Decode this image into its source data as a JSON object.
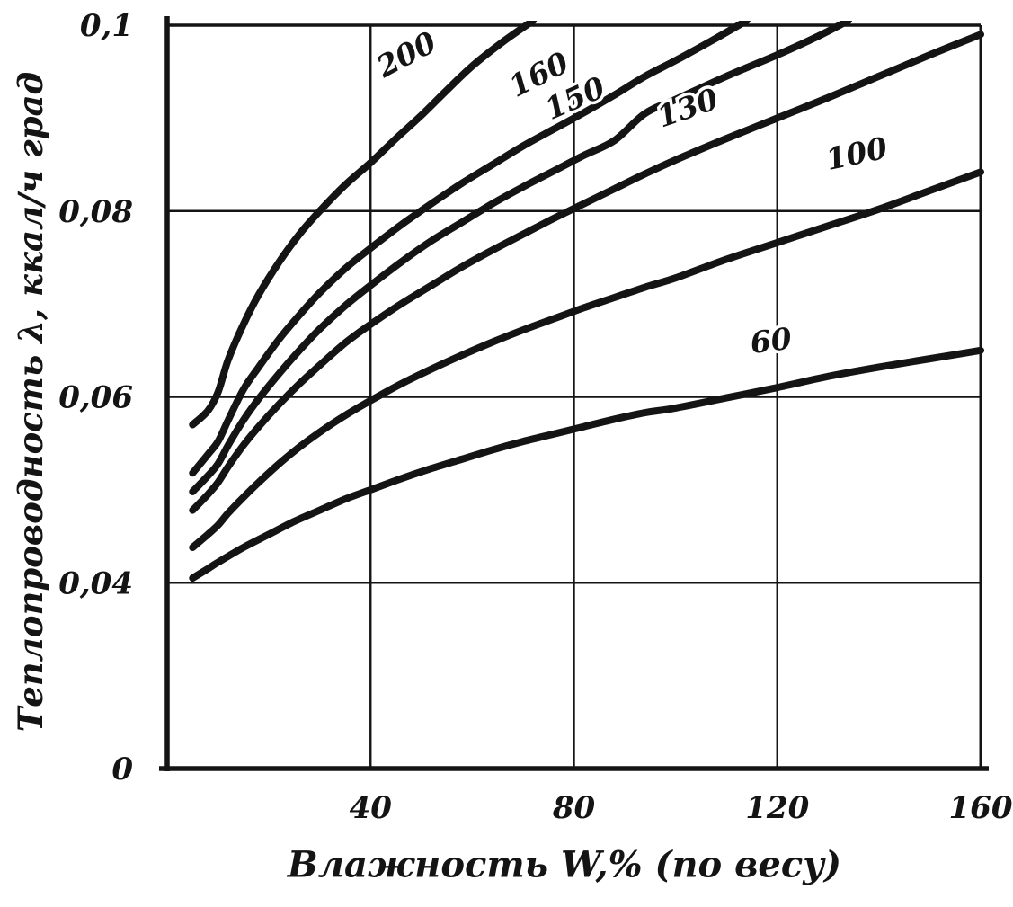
{
  "page": {
    "background": "#ffffff",
    "ink": "#141414"
  },
  "chart_data": {
    "type": "line",
    "title": "",
    "xlabel": "Влажность W,% (по весу)",
    "ylabel": "Теплопроводность λ, ккал/ч град",
    "xlim": [
      0,
      160
    ],
    "xticks": [
      40,
      80,
      120,
      160
    ],
    "xtick_labels": [
      "40",
      "80",
      "120",
      "160"
    ],
    "ytick_values": [
      0,
      0.04,
      0.06,
      0.08,
      0.1
    ],
    "ytick_labels": [
      "0",
      "0,04",
      "0,06",
      "0,08",
      "0,1"
    ],
    "ylim": [
      0,
      0.1
    ],
    "grid": true,
    "legend_position": "inline-curve-labels",
    "axis_note": "y-axis segment 0 to 0,04 is drawn compressed (one grid interval)",
    "series": [
      {
        "name": "200",
        "label": "200",
        "label_pos": {
          "w": 48,
          "dy": -68,
          "rot": -28
        },
        "points": [
          [
            5,
            0.057
          ],
          [
            8,
            0.0585
          ],
          [
            10,
            0.0605
          ],
          [
            12,
            0.064
          ],
          [
            15,
            0.0678
          ],
          [
            18,
            0.071
          ],
          [
            22,
            0.0745
          ],
          [
            26,
            0.0775
          ],
          [
            30,
            0.08
          ],
          [
            35,
            0.0828
          ],
          [
            40,
            0.0852
          ],
          [
            45,
            0.0878
          ],
          [
            50,
            0.0903
          ],
          [
            55,
            0.093
          ],
          [
            60,
            0.0956
          ],
          [
            66,
            0.0982
          ],
          [
            72,
            0.1005
          ]
        ]
      },
      {
        "name": "160",
        "label": "160",
        "label_pos": {
          "w": 74,
          "dy": -57,
          "rot": -27
        },
        "points": [
          [
            5,
            0.0518
          ],
          [
            8,
            0.0538
          ],
          [
            10,
            0.0552
          ],
          [
            12,
            0.0575
          ],
          [
            15,
            0.0608
          ],
          [
            18,
            0.0632
          ],
          [
            22,
            0.0662
          ],
          [
            26,
            0.0688
          ],
          [
            30,
            0.0712
          ],
          [
            35,
            0.0738
          ],
          [
            40,
            0.076
          ],
          [
            46,
            0.0785
          ],
          [
            52,
            0.0808
          ],
          [
            58,
            0.083
          ],
          [
            64,
            0.085
          ],
          [
            70,
            0.087
          ],
          [
            76,
            0.0888
          ],
          [
            82,
            0.0906
          ],
          [
            88,
            0.0925
          ],
          [
            94,
            0.0945
          ],
          [
            100,
            0.0962
          ],
          [
            107,
            0.0983
          ],
          [
            114,
            0.1005
          ]
        ]
      },
      {
        "name": "150",
        "label": "150",
        "label_pos": {
          "w": 81,
          "dy": -56,
          "rot": -24
        },
        "points": [
          [
            5,
            0.0498
          ],
          [
            8,
            0.0515
          ],
          [
            10,
            0.0528
          ],
          [
            12,
            0.0548
          ],
          [
            15,
            0.0575
          ],
          [
            18,
            0.0598
          ],
          [
            22,
            0.0625
          ],
          [
            26,
            0.065
          ],
          [
            30,
            0.0673
          ],
          [
            35,
            0.0698
          ],
          [
            40,
            0.072
          ],
          [
            46,
            0.0745
          ],
          [
            52,
            0.0768
          ],
          [
            58,
            0.0788
          ],
          [
            64,
            0.0808
          ],
          [
            70,
            0.0826
          ],
          [
            76,
            0.0843
          ],
          [
            82,
            0.086
          ],
          [
            88,
            0.0876
          ],
          [
            94,
            0.0905
          ],
          [
            100,
            0.092
          ],
          [
            110,
            0.0945
          ],
          [
            120,
            0.0968
          ],
          [
            128,
            0.0988
          ],
          [
            134,
            0.1005
          ]
        ]
      },
      {
        "name": "130",
        "label": "130",
        "label_pos": {
          "w": 103,
          "dy": -40,
          "rot": -19
        },
        "points": [
          [
            5,
            0.0478
          ],
          [
            8,
            0.0495
          ],
          [
            10,
            0.0508
          ],
          [
            12,
            0.0525
          ],
          [
            15,
            0.0548
          ],
          [
            18,
            0.0568
          ],
          [
            22,
            0.0592
          ],
          [
            26,
            0.0614
          ],
          [
            30,
            0.0634
          ],
          [
            35,
            0.0658
          ],
          [
            40,
            0.0678
          ],
          [
            46,
            0.07
          ],
          [
            52,
            0.072
          ],
          [
            58,
            0.074
          ],
          [
            64,
            0.0758
          ],
          [
            70,
            0.0775
          ],
          [
            76,
            0.0792
          ],
          [
            82,
            0.0808
          ],
          [
            88,
            0.0824
          ],
          [
            94,
            0.084
          ],
          [
            100,
            0.0855
          ],
          [
            110,
            0.0878
          ],
          [
            120,
            0.09
          ],
          [
            130,
            0.0922
          ],
          [
            140,
            0.0945
          ],
          [
            150,
            0.0968
          ],
          [
            160,
            0.099
          ]
        ]
      },
      {
        "name": "100",
        "label": "100",
        "label_pos": {
          "w": 136,
          "dy": -58,
          "rot": -12
        },
        "points": [
          [
            5,
            0.0438
          ],
          [
            8,
            0.0452
          ],
          [
            10,
            0.0462
          ],
          [
            12,
            0.0475
          ],
          [
            15,
            0.0492
          ],
          [
            18,
            0.0508
          ],
          [
            22,
            0.0528
          ],
          [
            26,
            0.0546
          ],
          [
            30,
            0.0562
          ],
          [
            35,
            0.058
          ],
          [
            40,
            0.0596
          ],
          [
            46,
            0.0614
          ],
          [
            52,
            0.063
          ],
          [
            58,
            0.0645
          ],
          [
            64,
            0.0659
          ],
          [
            70,
            0.0672
          ],
          [
            76,
            0.0684
          ],
          [
            82,
            0.0696
          ],
          [
            88,
            0.0707
          ],
          [
            94,
            0.0718
          ],
          [
            100,
            0.0728
          ],
          [
            110,
            0.0748
          ],
          [
            120,
            0.0766
          ],
          [
            130,
            0.0784
          ],
          [
            140,
            0.0802
          ],
          [
            150,
            0.0822
          ],
          [
            160,
            0.0842
          ]
        ]
      },
      {
        "name": "60",
        "label": "60",
        "label_pos": {
          "w": 119,
          "dy": -42,
          "rot": -7
        },
        "points": [
          [
            5,
            0.0405
          ],
          [
            8,
            0.0415
          ],
          [
            10,
            0.0422
          ],
          [
            15,
            0.0438
          ],
          [
            20,
            0.0452
          ],
          [
            25,
            0.0466
          ],
          [
            30,
            0.0478
          ],
          [
            35,
            0.049
          ],
          [
            40,
            0.05
          ],
          [
            46,
            0.0512
          ],
          [
            52,
            0.0523
          ],
          [
            58,
            0.0533
          ],
          [
            64,
            0.0543
          ],
          [
            70,
            0.0552
          ],
          [
            76,
            0.056
          ],
          [
            82,
            0.0568
          ],
          [
            88,
            0.0576
          ],
          [
            94,
            0.0583
          ],
          [
            100,
            0.0588
          ],
          [
            110,
            0.0599
          ],
          [
            120,
            0.061
          ],
          [
            130,
            0.0622
          ],
          [
            140,
            0.0632
          ],
          [
            150,
            0.0641
          ],
          [
            160,
            0.065
          ]
        ]
      }
    ]
  }
}
